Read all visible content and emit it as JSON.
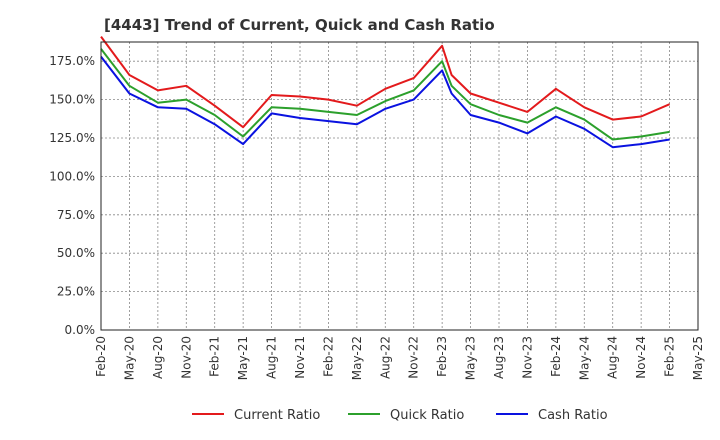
{
  "chart_data": {
    "type": "line",
    "title": "[4443]  Trend of Current, Quick and Cash Ratio",
    "xlabel": "",
    "ylabel": "",
    "ylim": [
      0,
      187.5
    ],
    "y_ticks": [
      0,
      25,
      50,
      75,
      100,
      125,
      150,
      175
    ],
    "y_tick_labels": [
      "0.0%",
      "25.0%",
      "50.0%",
      "75.0%",
      "100.0%",
      "125.0%",
      "150.0%",
      "175.0%"
    ],
    "x_ticks": [
      "Feb-20",
      "May-20",
      "Aug-20",
      "Nov-20",
      "Feb-21",
      "May-21",
      "Aug-21",
      "Nov-21",
      "Feb-22",
      "May-22",
      "Aug-22",
      "Nov-22",
      "Feb-23",
      "May-23",
      "Aug-23",
      "Nov-23",
      "Feb-24",
      "May-24",
      "Aug-24",
      "Nov-24",
      "Feb-25",
      "May-25"
    ],
    "x_index_range": [
      0,
      63
    ],
    "grid": true,
    "legend_position": "bottom",
    "series": [
      {
        "name": "Current Ratio",
        "color": "#e31a1c",
        "x": [
          0,
          3,
          6,
          9,
          12,
          15,
          18,
          21,
          24,
          27,
          30,
          33,
          36,
          37,
          39,
          42,
          45,
          48,
          51,
          54,
          57,
          60
        ],
        "values": [
          191,
          166,
          156,
          159,
          146,
          132,
          153,
          152,
          150,
          146,
          157,
          164,
          185,
          166,
          154,
          148,
          142,
          157,
          145,
          137,
          139,
          147
        ]
      },
      {
        "name": "Quick Ratio",
        "color": "#2ca02c",
        "x": [
          0,
          3,
          6,
          9,
          12,
          15,
          18,
          21,
          24,
          27,
          30,
          33,
          36,
          37,
          39,
          42,
          45,
          48,
          51,
          54,
          57,
          60
        ],
        "values": [
          183,
          159,
          148,
          150,
          140,
          126,
          145,
          144,
          142,
          140,
          149,
          156,
          175,
          159,
          147,
          140,
          135,
          145,
          137,
          124,
          126,
          129
        ]
      },
      {
        "name": "Cash Ratio",
        "color": "#0a12e0",
        "x": [
          0,
          3,
          6,
          9,
          12,
          15,
          18,
          21,
          24,
          27,
          30,
          33,
          36,
          37,
          39,
          42,
          45,
          48,
          51,
          54,
          57,
          60
        ],
        "values": [
          178,
          154,
          145,
          144,
          134,
          121,
          141,
          138,
          136,
          134,
          144,
          150,
          169,
          154,
          140,
          135,
          128,
          139,
          131,
          119,
          121,
          124
        ]
      }
    ]
  }
}
